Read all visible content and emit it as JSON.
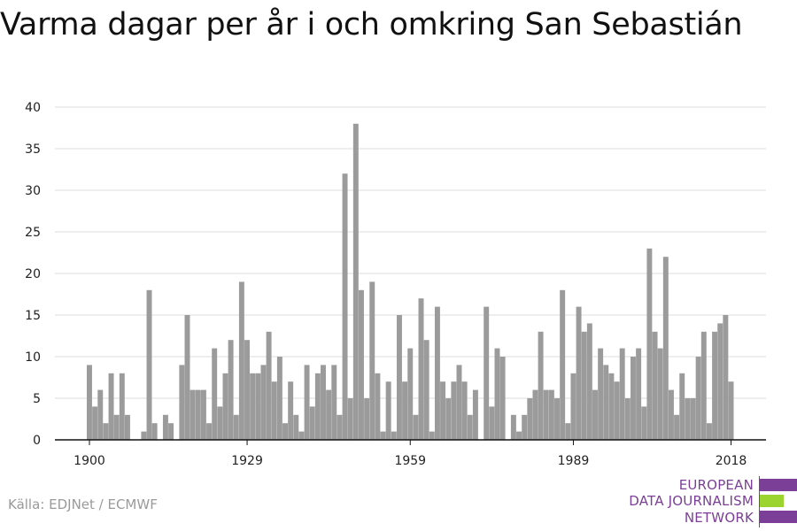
{
  "title": "Varma dagar per år i och omkring San Sebastián",
  "source": "Källa: EDJNet / ECMWF",
  "logo": {
    "lines": [
      "EUROPEAN",
      "DATA JOURNALISM",
      "NETWORK"
    ],
    "colors": {
      "purple": "#7b3f98",
      "green": "#9bd42f"
    }
  },
  "colors": {
    "bar": "#9b9b9b",
    "grid": "#dddddd",
    "axis": "#111111"
  },
  "chart_data": {
    "type": "bar",
    "title": "Varma dagar per år i och omkring San Sebastián",
    "xlabel": "",
    "ylabel": "",
    "ylim": [
      0,
      40
    ],
    "yticks": [
      0,
      5,
      10,
      15,
      20,
      25,
      30,
      35,
      40
    ],
    "xticks": [
      1900,
      1929,
      1959,
      1989,
      2018
    ],
    "grid": true,
    "x": [
      1900,
      1901,
      1902,
      1903,
      1904,
      1905,
      1906,
      1907,
      1908,
      1909,
      1910,
      1911,
      1912,
      1913,
      1914,
      1915,
      1916,
      1917,
      1918,
      1919,
      1920,
      1921,
      1922,
      1923,
      1924,
      1925,
      1926,
      1927,
      1928,
      1929,
      1930,
      1931,
      1932,
      1933,
      1934,
      1935,
      1936,
      1937,
      1938,
      1939,
      1940,
      1941,
      1942,
      1943,
      1944,
      1945,
      1946,
      1947,
      1948,
      1949,
      1950,
      1951,
      1952,
      1953,
      1954,
      1955,
      1956,
      1957,
      1958,
      1959,
      1960,
      1961,
      1962,
      1963,
      1964,
      1965,
      1966,
      1967,
      1968,
      1969,
      1970,
      1971,
      1972,
      1973,
      1974,
      1975,
      1976,
      1977,
      1978,
      1979,
      1980,
      1981,
      1982,
      1983,
      1984,
      1985,
      1986,
      1987,
      1988,
      1989,
      1990,
      1991,
      1992,
      1993,
      1994,
      1995,
      1996,
      1997,
      1998,
      1999,
      2000,
      2001,
      2002,
      2003,
      2004,
      2005,
      2006,
      2007,
      2008,
      2009,
      2010,
      2011,
      2012,
      2013,
      2014,
      2015,
      2016,
      2017,
      2018,
      2019
    ],
    "values": [
      9,
      4,
      6,
      2,
      8,
      3,
      8,
      3,
      0,
      0,
      1,
      18,
      2,
      0,
      3,
      2,
      0,
      9,
      15,
      6,
      6,
      6,
      2,
      11,
      4,
      8,
      12,
      3,
      19,
      12,
      8,
      8,
      9,
      13,
      7,
      10,
      2,
      7,
      3,
      1,
      9,
      4,
      8,
      9,
      6,
      9,
      3,
      32,
      5,
      38,
      18,
      5,
      19,
      8,
      1,
      7,
      1,
      15,
      7,
      11,
      3,
      17,
      12,
      1,
      16,
      7,
      5,
      7,
      9,
      7,
      3,
      6,
      0,
      16,
      4,
      11,
      10,
      0,
      3,
      1,
      3,
      5,
      6,
      13,
      6,
      6,
      5,
      18,
      2,
      8,
      16,
      13,
      14,
      6,
      11,
      9,
      8,
      7,
      11,
      5,
      10,
      11,
      4,
      23,
      13,
      11,
      22,
      6,
      3,
      8,
      5,
      5,
      10,
      13,
      2,
      13,
      14,
      15,
      7,
      0
    ]
  }
}
